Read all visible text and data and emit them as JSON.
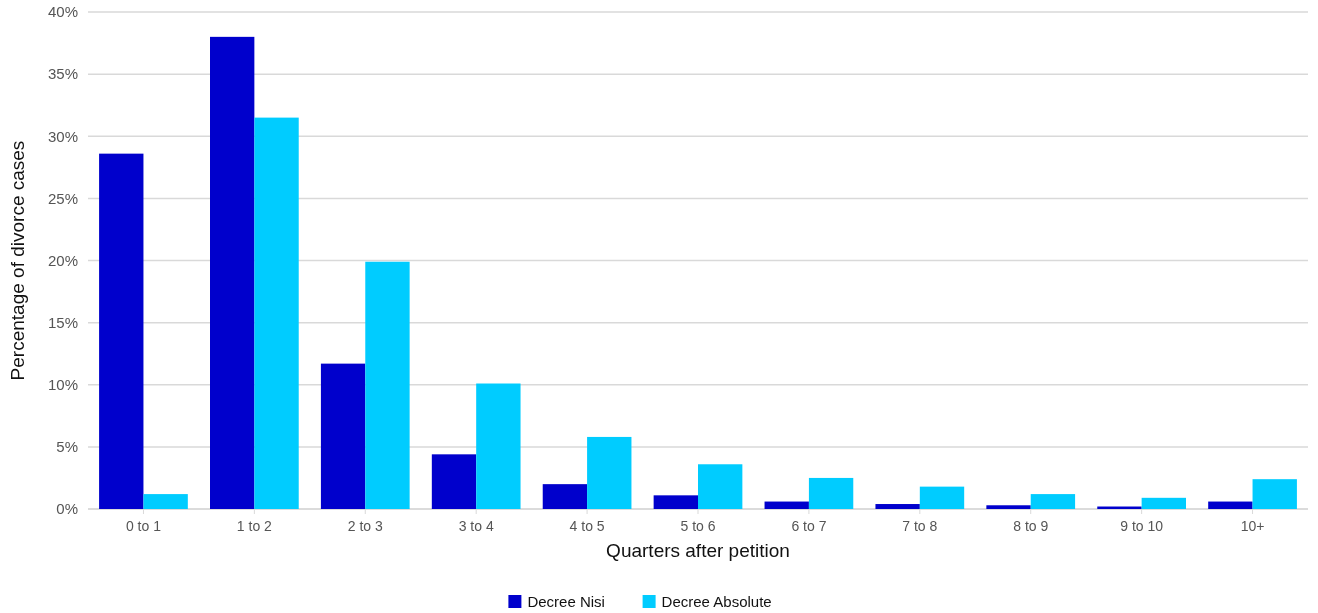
{
  "chart_data": {
    "type": "bar",
    "xlabel": "Quarters after petition",
    "ylabel": "Percentage of divorce cases",
    "categories": [
      "0 to 1",
      "1 to 2",
      "2 to 3",
      "3 to 4",
      "4 to 5",
      "5 to 6",
      "6 to 7",
      "7 to 8",
      "8 to 9",
      "9 to 10",
      "10+"
    ],
    "series": [
      {
        "name": "Decree Nisi",
        "color": "#0000cc",
        "values": [
          28.6,
          38.0,
          11.7,
          4.4,
          2.0,
          1.1,
          0.6,
          0.4,
          0.3,
          0.2,
          0.6
        ]
      },
      {
        "name": "Decree Absolute",
        "color": "#00ccff",
        "values": [
          1.2,
          31.5,
          19.9,
          10.1,
          5.8,
          3.6,
          2.5,
          1.8,
          1.2,
          0.9,
          2.4
        ]
      }
    ],
    "ylim": [
      0,
      40
    ],
    "yticks": [
      {
        "value": 0,
        "label": "0%"
      },
      {
        "value": 5,
        "label": "5%"
      },
      {
        "value": 10,
        "label": "10%"
      },
      {
        "value": 15,
        "label": "15%"
      },
      {
        "value": 20,
        "label": "20%"
      },
      {
        "value": 25,
        "label": "25%"
      },
      {
        "value": 30,
        "label": "30%"
      },
      {
        "value": 35,
        "label": "35%"
      },
      {
        "value": 40,
        "label": "40%"
      }
    ],
    "grid": "y",
    "legend": "bottom"
  }
}
